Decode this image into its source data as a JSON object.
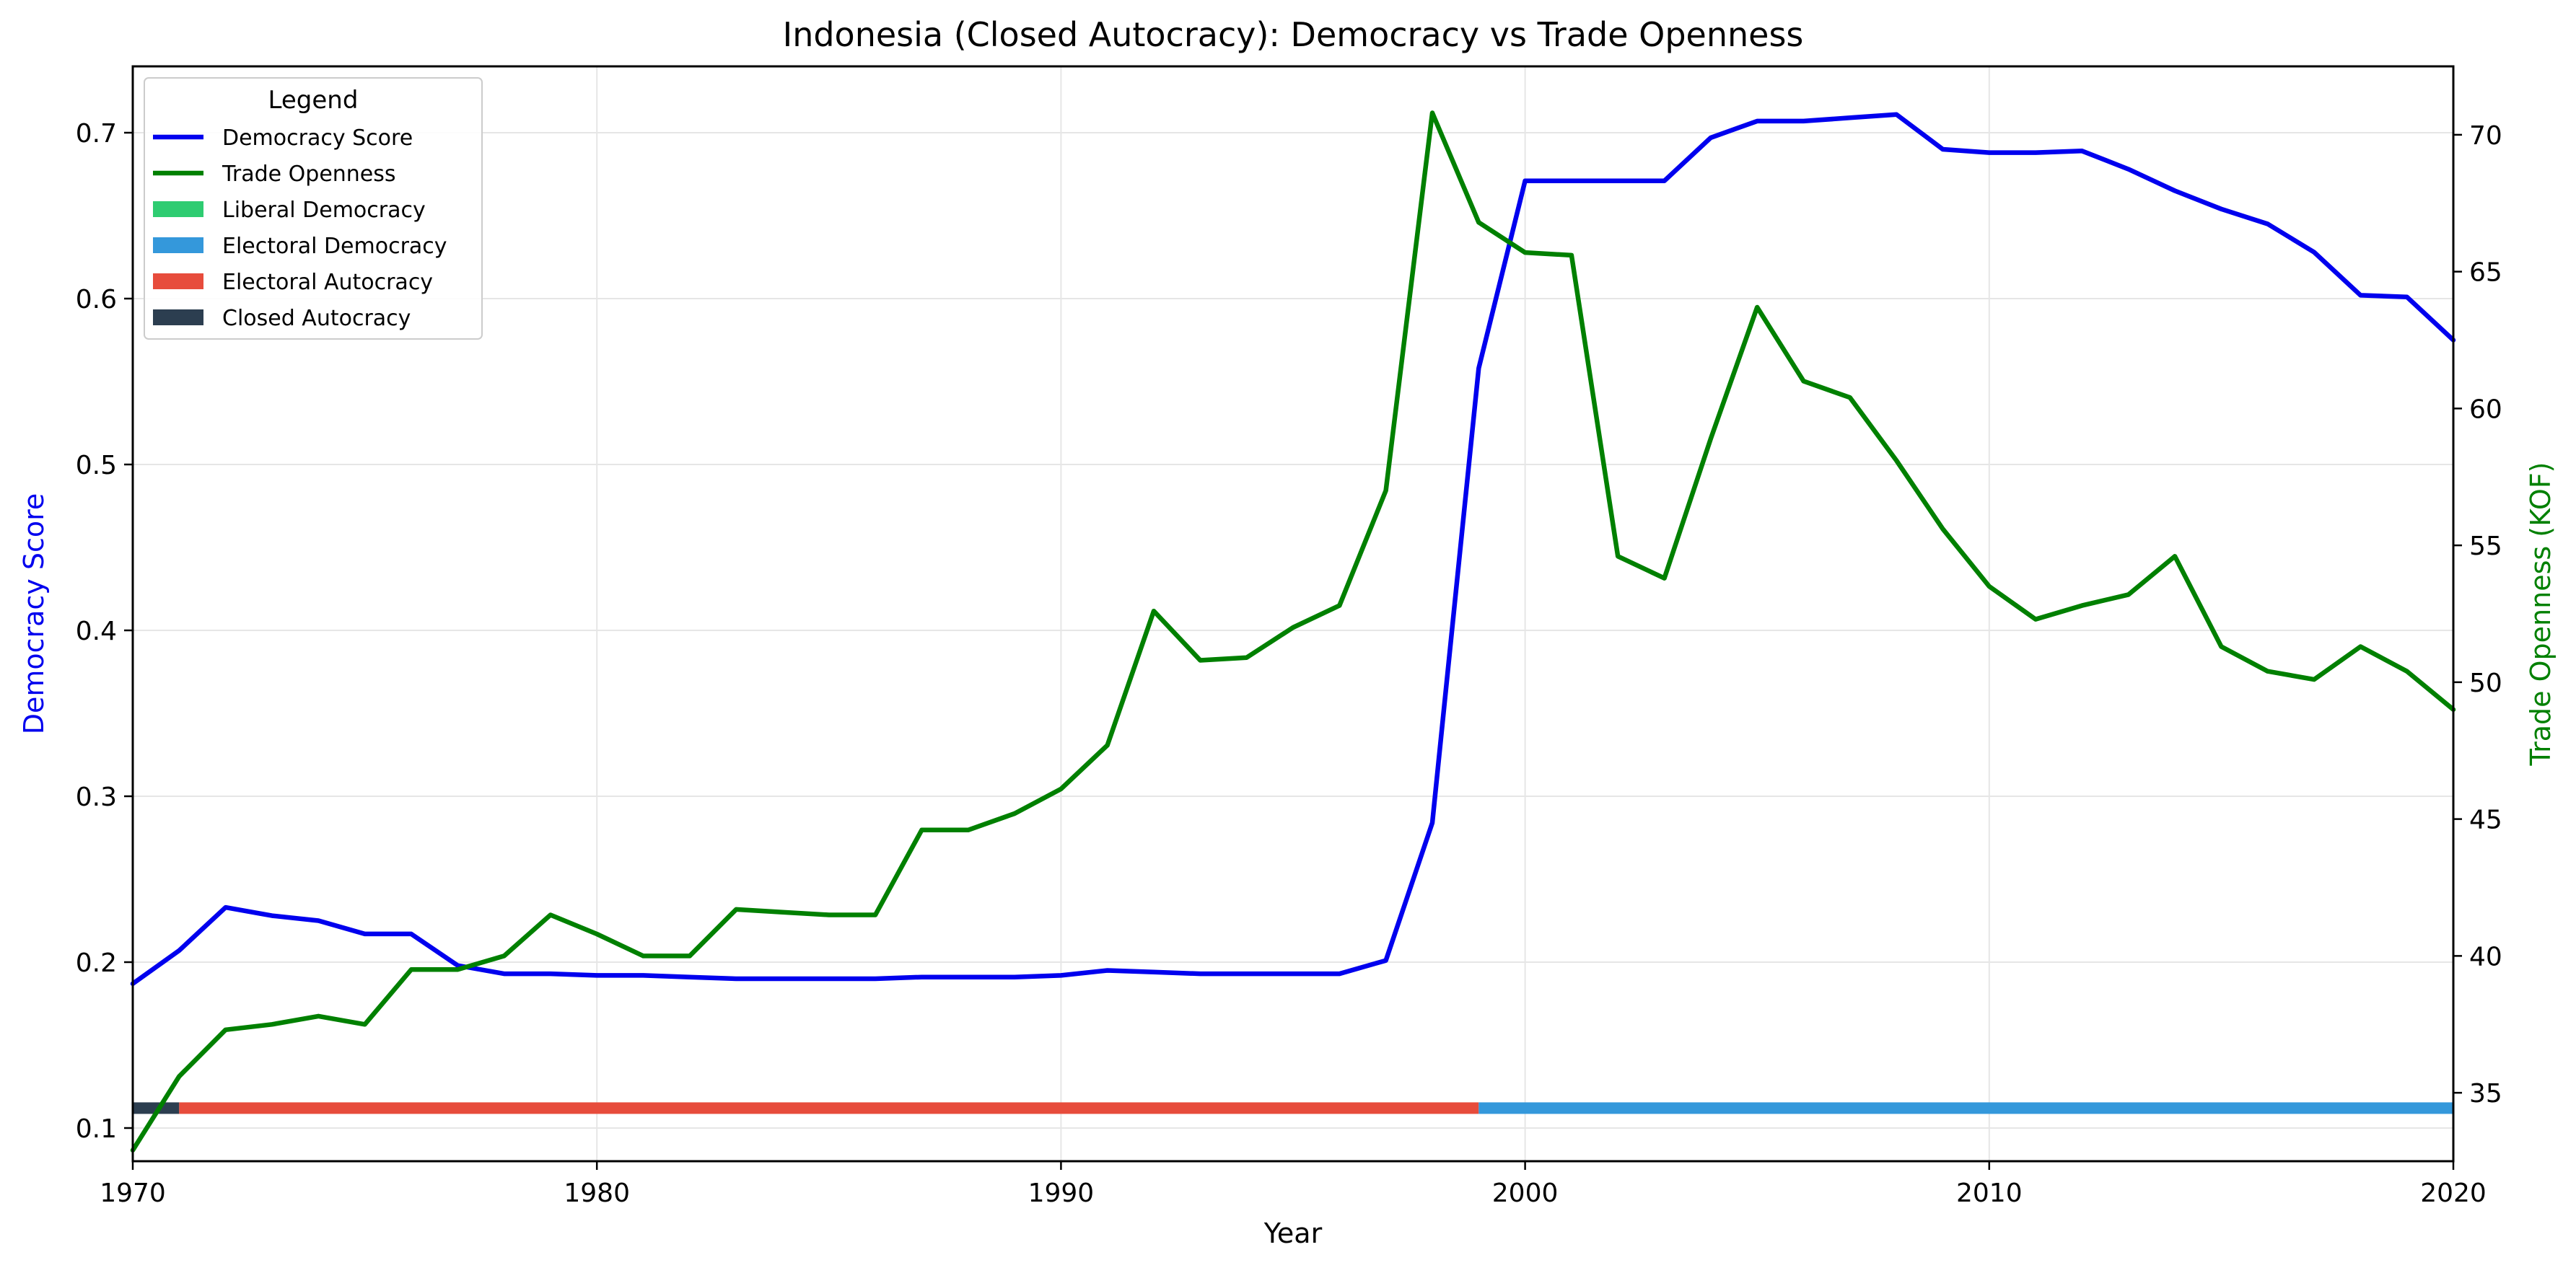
{
  "chart_data": {
    "type": "line",
    "title": "Indonesia (Closed Autocracy): Democracy vs Trade Openness",
    "xlabel": "Year",
    "ylabel_left": "Democracy Score",
    "ylabel_right": "Trade Openness (KOF)",
    "xlim": [
      1970,
      2020
    ],
    "ylim_left": [
      0.08,
      0.74
    ],
    "ylim_right": [
      32.5,
      72.5
    ],
    "x_ticks": [
      1970,
      1980,
      1990,
      2000,
      2010,
      2020
    ],
    "y_left_ticks": [
      0.1,
      0.2,
      0.3,
      0.4,
      0.5,
      0.6,
      0.7
    ],
    "y_right_ticks": [
      35,
      40,
      45,
      50,
      55,
      60,
      65,
      70
    ],
    "grid": true,
    "legend": {
      "title": "Legend",
      "placement": "top-left",
      "entries": [
        {
          "label": "Democracy Score",
          "kind": "line",
          "color": "#0000ee"
        },
        {
          "label": "Trade Openness",
          "kind": "line",
          "color": "#008000"
        },
        {
          "label": "Liberal Democracy",
          "kind": "patch",
          "color": "#2ecc71"
        },
        {
          "label": "Electoral Democracy",
          "kind": "patch",
          "color": "#3498db"
        },
        {
          "label": "Electoral Autocracy",
          "kind": "patch",
          "color": "#e74c3c"
        },
        {
          "label": "Closed Autocracy",
          "kind": "patch",
          "color": "#2c3e50"
        }
      ]
    },
    "series": [
      {
        "name": "Democracy Score",
        "axis": "left",
        "color": "#0000ee",
        "x": [
          1970,
          1971,
          1972,
          1973,
          1974,
          1975,
          1976,
          1977,
          1978,
          1979,
          1980,
          1981,
          1982,
          1983,
          1984,
          1985,
          1986,
          1987,
          1988,
          1989,
          1990,
          1991,
          1992,
          1993,
          1994,
          1995,
          1996,
          1997,
          1998,
          1999,
          2000,
          2001,
          2002,
          2003,
          2004,
          2005,
          2006,
          2007,
          2008,
          2009,
          2010,
          2011,
          2012,
          2013,
          2014,
          2015,
          2016,
          2017,
          2018,
          2019,
          2020
        ],
        "values": [
          0.187,
          0.207,
          0.233,
          0.228,
          0.225,
          0.217,
          0.217,
          0.198,
          0.193,
          0.193,
          0.192,
          0.192,
          0.191,
          0.19,
          0.19,
          0.19,
          0.19,
          0.191,
          0.191,
          0.191,
          0.192,
          0.195,
          0.194,
          0.193,
          0.193,
          0.193,
          0.193,
          0.201,
          0.284,
          0.558,
          0.671,
          0.671,
          0.671,
          0.671,
          0.697,
          0.707,
          0.707,
          0.709,
          0.711,
          0.69,
          0.688,
          0.688,
          0.689,
          0.678,
          0.665,
          0.654,
          0.645,
          0.628,
          0.602,
          0.601,
          0.575
        ]
      },
      {
        "name": "Trade Openness",
        "axis": "right",
        "color": "#008000",
        "x": [
          1970,
          1971,
          1972,
          1973,
          1974,
          1975,
          1976,
          1977,
          1978,
          1979,
          1980,
          1981,
          1982,
          1983,
          1984,
          1985,
          1986,
          1987,
          1988,
          1989,
          1990,
          1991,
          1992,
          1993,
          1994,
          1995,
          1996,
          1997,
          1998,
          1999,
          2000,
          2001,
          2002,
          2003,
          2004,
          2005,
          2006,
          2007,
          2008,
          2009,
          2010,
          2011,
          2012,
          2013,
          2014,
          2015,
          2016,
          2017,
          2018,
          2019,
          2020
        ],
        "values": [
          32.9,
          35.6,
          37.3,
          37.5,
          37.8,
          37.5,
          39.5,
          39.5,
          40.0,
          41.5,
          40.8,
          40.0,
          40.0,
          41.7,
          41.6,
          41.5,
          41.5,
          44.6,
          44.6,
          45.2,
          46.1,
          47.7,
          52.6,
          50.8,
          50.9,
          52.0,
          52.8,
          57.0,
          70.8,
          66.8,
          65.7,
          65.6,
          54.6,
          53.8,
          58.9,
          63.7,
          61.0,
          60.4,
          58.1,
          55.6,
          53.5,
          52.3,
          52.8,
          53.2,
          54.6,
          51.3,
          50.4,
          50.1,
          51.3,
          50.4,
          49.0
        ]
      }
    ],
    "regime_bar": {
      "level": 0.112,
      "segments": [
        {
          "label": "Closed Autocracy",
          "start": 1970,
          "end": 1971,
          "color": "#2c3e50"
        },
        {
          "label": "Electoral Autocracy",
          "start": 1971,
          "end": 1999,
          "color": "#e74c3c"
        },
        {
          "label": "Electoral Democracy",
          "start": 1999,
          "end": 2020,
          "color": "#3498db"
        }
      ]
    }
  }
}
